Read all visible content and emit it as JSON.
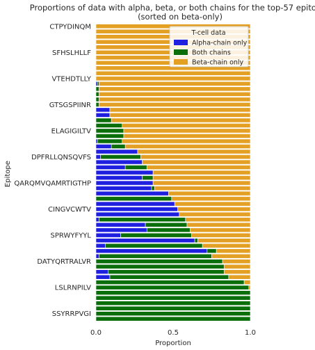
{
  "chart_data": {
    "type": "bar",
    "orientation": "horizontal",
    "stacked": true,
    "title": "Proportions of data with alpha, beta, or both chains for the top-57 epitopes",
    "subtitle": "(sorted on beta-only)",
    "xlabel": "Proportion",
    "ylabel": "Epitope",
    "xlim": [
      0,
      1
    ],
    "xticks": [
      "0.0",
      "0.5",
      "1.0"
    ],
    "grid": false,
    "legend": {
      "title": "T-cell data",
      "placement": "top-right",
      "entries": [
        "Alpha-chain only",
        "Both chains",
        "Beta-chain only"
      ]
    },
    "category_count": 57,
    "yticks": [
      {
        "label": "CTPYDINQM",
        "index": 0
      },
      {
        "label": "SFHSLHLLF",
        "index": 5
      },
      {
        "label": "VTEHDTLLY",
        "index": 10
      },
      {
        "label": "GTSGSPIINR",
        "index": 15
      },
      {
        "label": "ELAGIGILTV",
        "index": 20
      },
      {
        "label": "DPFRLLQNSQVFS",
        "index": 25
      },
      {
        "label": "QARQMVQAMRTIGTHP",
        "index": 30
      },
      {
        "label": "CINGVCWTV",
        "index": 35
      },
      {
        "label": "SPRWYFYYL",
        "index": 40
      },
      {
        "label": "DATYQRTRALVR",
        "index": 45
      },
      {
        "label": "LSLRNPILV",
        "index": 50
      },
      {
        "label": "SSYRRPVGI",
        "index": 55
      }
    ],
    "series": [
      {
        "name": "Alpha-chain only",
        "color": "#1f1fe0",
        "values": [
          0,
          0,
          0,
          0,
          0,
          0,
          0,
          0,
          0,
          0,
          0,
          0.01,
          0,
          0,
          0,
          0,
          0.09,
          0.09,
          0,
          0,
          0,
          0,
          0.01,
          0.1,
          0.27,
          0.03,
          0.3,
          0.19,
          0.37,
          0.3,
          0.37,
          0.36,
          0.47,
          0,
          0.51,
          0.53,
          0.54,
          0.02,
          0.32,
          0.33,
          0.16,
          0.64,
          0.06,
          0.72,
          0.02,
          0,
          0,
          0.08,
          0.09,
          0,
          0,
          0,
          0,
          0,
          0,
          0,
          0
        ]
      },
      {
        "name": "Both chains",
        "color": "#0a6e0a",
        "values": [
          0,
          0,
          0,
          0,
          0,
          0,
          0,
          0,
          0,
          0,
          0,
          0.01,
          0.02,
          0.02,
          0.02,
          0.02,
          0,
          0,
          0.1,
          0.17,
          0.18,
          0.18,
          0.16,
          0.09,
          0,
          0.26,
          0,
          0.14,
          0,
          0.07,
          0,
          0.02,
          0,
          0.49,
          0,
          0,
          0,
          0.56,
          0.27,
          0.28,
          0.46,
          0.02,
          0.63,
          0.06,
          0.73,
          0.82,
          0.83,
          0.75,
          0.77,
          0.96,
          0.99,
          1,
          1,
          1,
          1,
          1,
          1
        ]
      },
      {
        "name": "Beta-chain only",
        "color": "#e3a024",
        "values": [
          1,
          1,
          1,
          1,
          1,
          1,
          1,
          1,
          1,
          1,
          1,
          0.98,
          0.98,
          0.98,
          0.98,
          0.98,
          0.91,
          0.91,
          0.9,
          0.83,
          0.82,
          0.82,
          0.83,
          0.81,
          0.73,
          0.71,
          0.7,
          0.67,
          0.63,
          0.63,
          0.63,
          0.62,
          0.53,
          0.51,
          0.49,
          0.47,
          0.46,
          0.42,
          0.41,
          0.39,
          0.38,
          0.34,
          0.31,
          0.22,
          0.25,
          0.18,
          0.17,
          0.17,
          0.14,
          0.04,
          0.01,
          0,
          0,
          0,
          0,
          0,
          0
        ]
      }
    ]
  }
}
